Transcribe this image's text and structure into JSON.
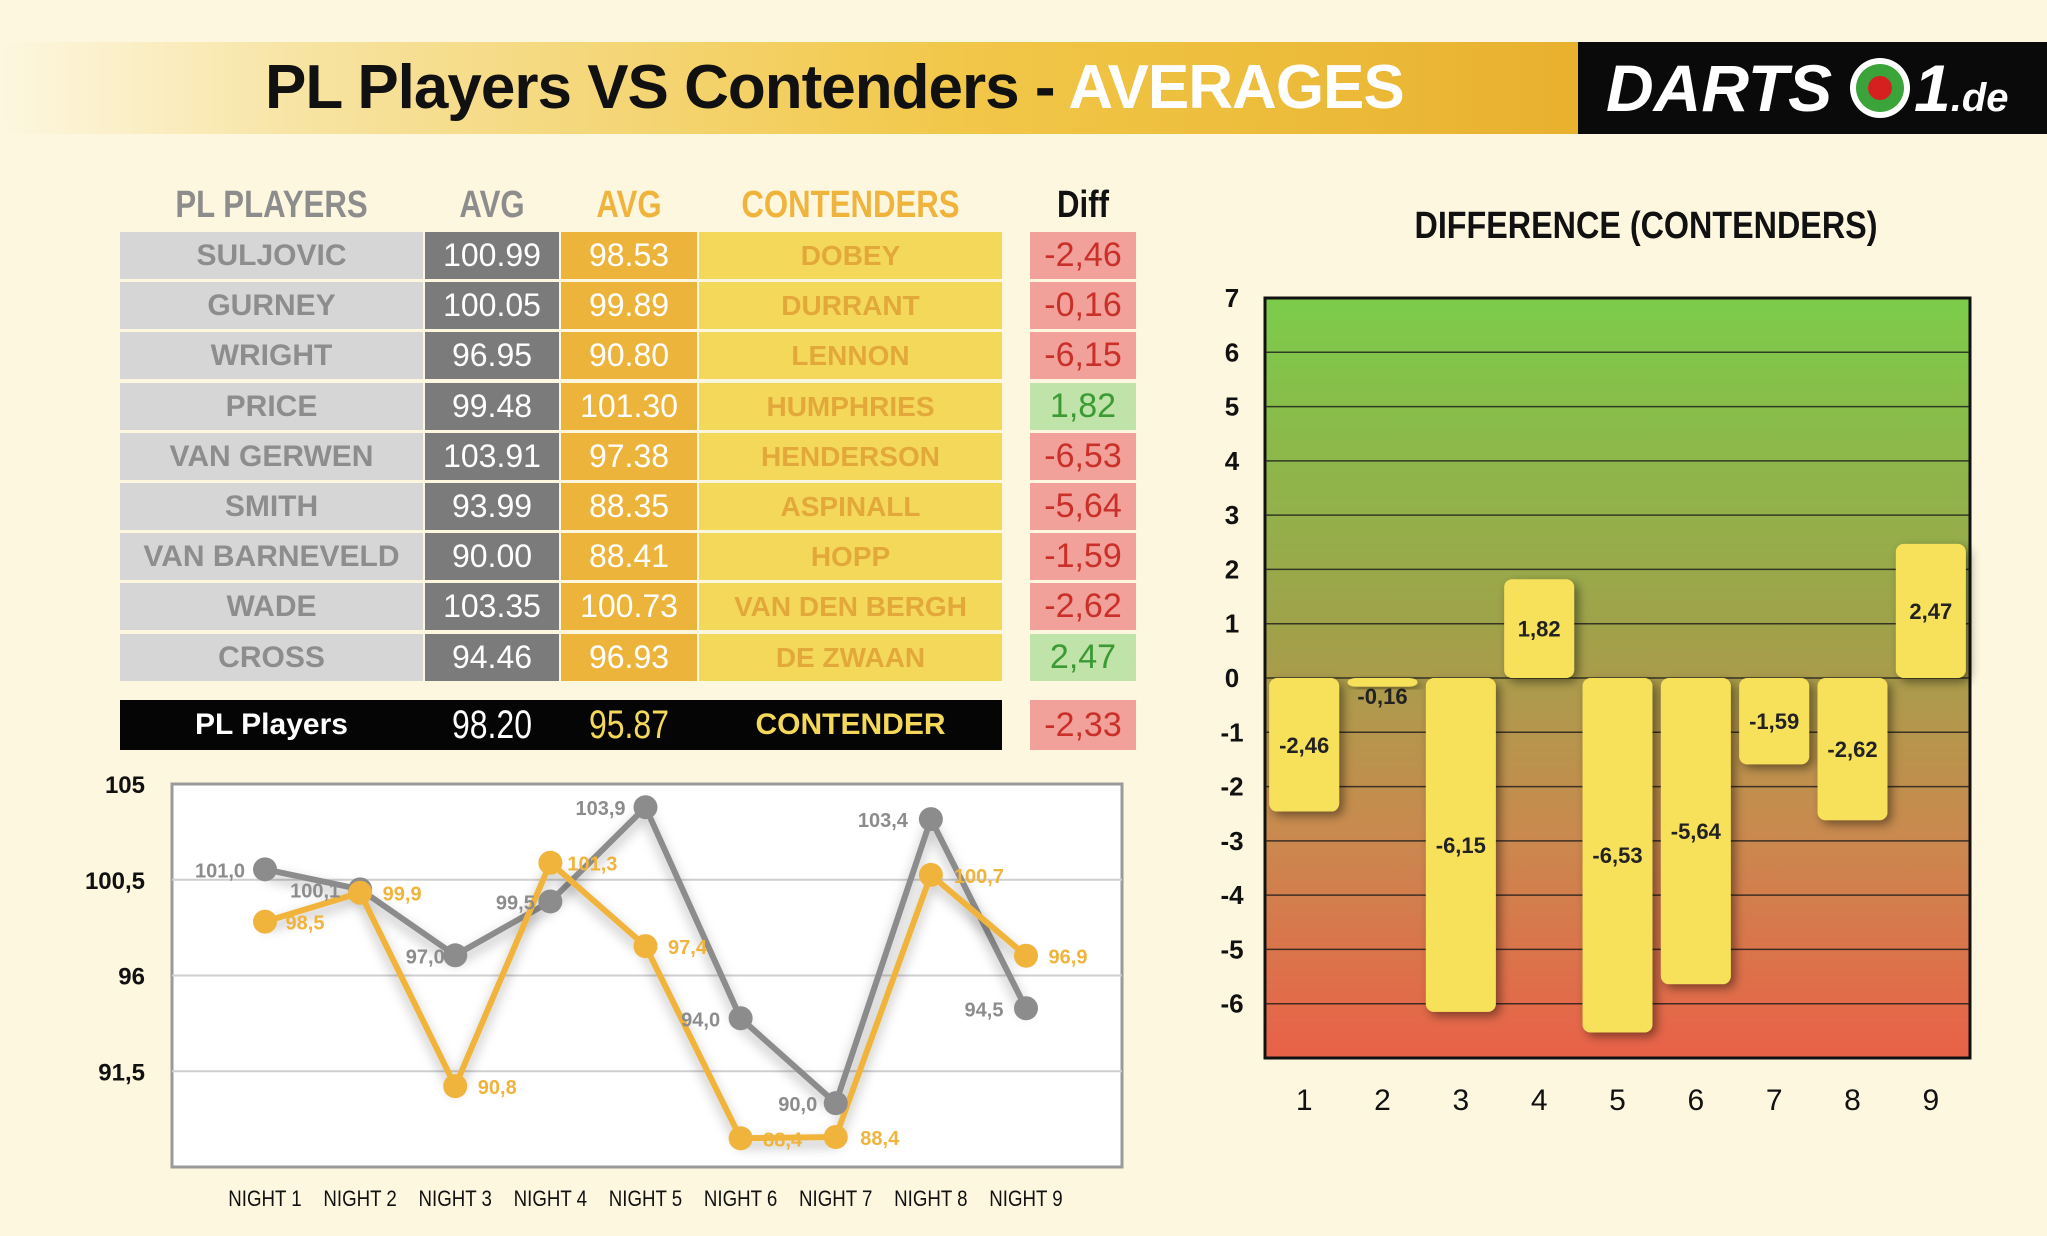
{
  "header": {
    "title_main": "PL Players VS Contenders - ",
    "title_accent": "AVERAGES",
    "logo_text": "DARTS",
    "logo_suffix": "1",
    "logo_domain": ".de",
    "logo_icon": "dartboard-icon"
  },
  "table": {
    "headers": {
      "players": "PL PLAYERS",
      "avg_players": "AVG",
      "avg_contenders": "AVG",
      "contenders": "CONTENDERS",
      "diff": "Diff"
    },
    "rows": [
      {
        "player": "SULJOVIC",
        "p_avg": "100.99",
        "c_avg": "98.53",
        "contender": "DOBEY",
        "diff": "-2,46"
      },
      {
        "player": "GURNEY",
        "p_avg": "100.05",
        "c_avg": "99.89",
        "contender": "DURRANT",
        "diff": "-0,16"
      },
      {
        "player": "WRIGHT",
        "p_avg": "96.95",
        "c_avg": "90.80",
        "contender": "LENNON",
        "diff": "-6,15"
      },
      {
        "player": "PRICE",
        "p_avg": "99.48",
        "c_avg": "101.30",
        "contender": "HUMPHRIES",
        "diff": "1,82"
      },
      {
        "player": "VAN GERWEN",
        "p_avg": "103.91",
        "c_avg": "97.38",
        "contender": "HENDERSON",
        "diff": "-6,53"
      },
      {
        "player": "SMITH",
        "p_avg": "93.99",
        "c_avg": "88.35",
        "contender": "ASPINALL",
        "diff": "-5,64"
      },
      {
        "player": "VAN BARNEVELD",
        "p_avg": "90.00",
        "c_avg": "88.41",
        "contender": "HOPP",
        "diff": "-1,59"
      },
      {
        "player": "WADE",
        "p_avg": "103.35",
        "c_avg": "100.73",
        "contender": "VAN DEN BERGH",
        "diff": "-2,62"
      },
      {
        "player": "CROSS",
        "p_avg": "94.46",
        "c_avg": "96.93",
        "contender": "DE ZWAAN",
        "diff": "2,47"
      }
    ],
    "summary": {
      "label": "PL Players",
      "p_avg": "98.20",
      "c_avg": "95.87",
      "contender": "CONTENDER",
      "diff": "-2,33"
    }
  },
  "colors": {
    "players": "#8c8c8c",
    "contenders": "#f0b43c",
    "bar_fill": "#f7e05a",
    "positive_diff": "#3c9a34",
    "negative_diff": "#c9302a"
  },
  "chart_data": [
    {
      "type": "line",
      "x": [
        "NIGHT 1",
        "NIGHT 2",
        "NIGHT 3",
        "NIGHT 4",
        "NIGHT 5",
        "NIGHT 6",
        "NIGHT 7",
        "NIGHT 8",
        "NIGHT 9"
      ],
      "ylim": [
        87,
        105
      ],
      "yticks": [
        "105",
        "100,5",
        "96",
        "91,5"
      ],
      "yticks_values": [
        105,
        100.5,
        96,
        91.5
      ],
      "grid": true,
      "series": [
        {
          "values": [
            100.99,
            100.05,
            96.95,
            99.48,
            103.91,
            93.99,
            90.0,
            103.35,
            94.46
          ],
          "labels": [
            "101,0",
            "100,1",
            "97,0",
            "99,5",
            "103,9",
            "94,0",
            "90,0",
            "103,4",
            "94,5"
          ]
        },
        {
          "values": [
            98.53,
            99.89,
            90.8,
            101.3,
            97.38,
            88.35,
            88.41,
            100.73,
            96.93
          ],
          "labels": [
            "98,5",
            "99,9",
            "90,8",
            "101,3",
            "97,4",
            "88,4",
            "88,4",
            "100,7",
            "96,9"
          ]
        }
      ]
    },
    {
      "type": "bar",
      "title": "DIFFERENCE (CONTENDERS)",
      "categories": [
        "1",
        "2",
        "3",
        "4",
        "5",
        "6",
        "7",
        "8",
        "9"
      ],
      "values": [
        -2.46,
        -0.16,
        -6.15,
        1.82,
        -6.53,
        -5.64,
        -1.59,
        -2.62,
        2.47
      ],
      "labels": [
        "-2,46",
        "-0,16",
        "-6,15",
        "1,82",
        "-6,53",
        "-5,64",
        "-1,59",
        "-2,62",
        "2,47"
      ],
      "ylim": [
        -7,
        7
      ],
      "yticks": [
        "7",
        "6",
        "5",
        "4",
        "3",
        "2",
        "1",
        "0",
        "-1",
        "-2",
        "-3",
        "-4",
        "-5",
        "-6"
      ],
      "yticks_values": [
        7,
        6,
        5,
        4,
        3,
        2,
        1,
        0,
        -1,
        -2,
        -3,
        -4,
        -5,
        -6
      ],
      "grid": true
    }
  ]
}
